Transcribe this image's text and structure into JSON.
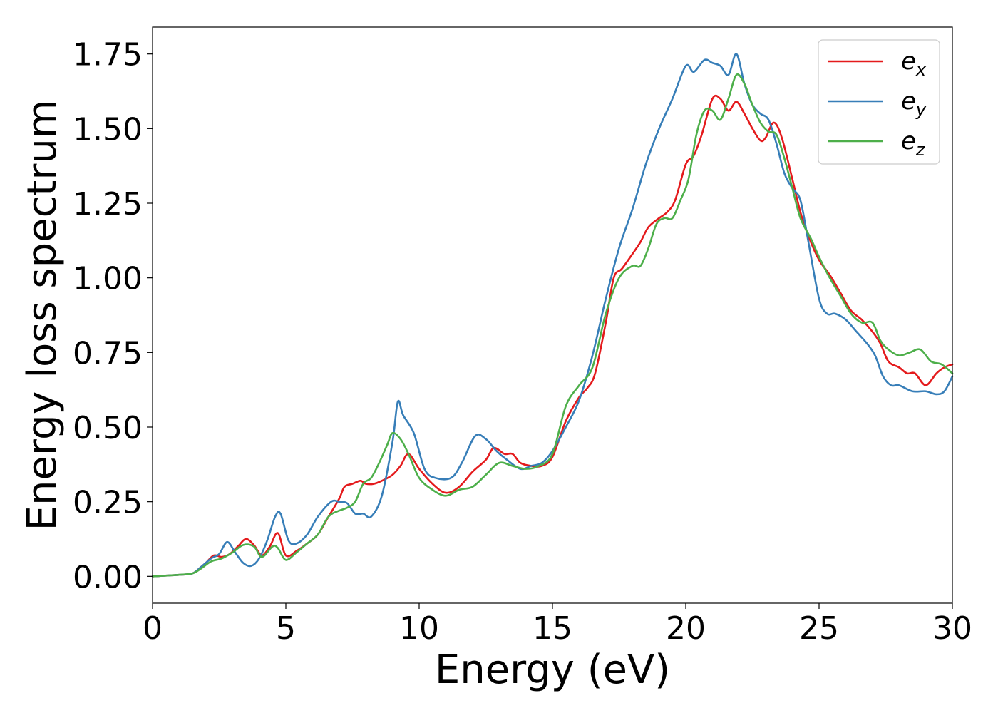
{
  "chart_data": {
    "type": "line",
    "title": "",
    "xlabel": "Energy (eV)",
    "ylabel": "Energy loss spectrum",
    "xlim": [
      0,
      30
    ],
    "ylim": [
      -0.09,
      1.84
    ],
    "xticks": [
      0,
      5,
      10,
      15,
      20,
      25,
      30
    ],
    "yticks": [
      0.0,
      0.25,
      0.5,
      0.75,
      1.0,
      1.25,
      1.5,
      1.75
    ],
    "xtick_labels": [
      "0",
      "5",
      "10",
      "15",
      "20",
      "25",
      "30"
    ],
    "ytick_labels": [
      "0.00",
      "0.25",
      "0.50",
      "0.75",
      "1.00",
      "1.25",
      "1.50",
      "1.75"
    ],
    "grid": false,
    "legend": "top-right",
    "series": [
      {
        "name": "e_x",
        "legend_base": "e",
        "legend_sub": "x",
        "color": "#e41a1c",
        "x": [
          0,
          1,
          1.5,
          1.8,
          2,
          2.3,
          2.6,
          2.9,
          3.2,
          3.5,
          3.8,
          4.1,
          4.4,
          4.7,
          5,
          5.4,
          5.8,
          6.2,
          6.6,
          7,
          7.2,
          7.5,
          7.8,
          8,
          8.3,
          8.6,
          9,
          9.3,
          9.6,
          10,
          10.5,
          11,
          11.5,
          12,
          12.5,
          12.8,
          13.2,
          13.5,
          13.8,
          14.2,
          14.6,
          15,
          15.5,
          16,
          16.3,
          16.6,
          17,
          17.3,
          17.6,
          18,
          18.3,
          18.6,
          19,
          19.3,
          19.6,
          20,
          20.3,
          20.6,
          21,
          21.3,
          21.6,
          21.9,
          22.2,
          22.5,
          22.8,
          23,
          23.3,
          23.6,
          24,
          24.3,
          24.6,
          25,
          25.4,
          25.8,
          26.2,
          26.6,
          27,
          27.3,
          27.6,
          28,
          28.3,
          28.6,
          29,
          29.4,
          29.7,
          30
        ],
        "y": [
          0,
          0.005,
          0.01,
          0.03,
          0.045,
          0.07,
          0.065,
          0.075,
          0.1,
          0.125,
          0.105,
          0.07,
          0.1,
          0.145,
          0.07,
          0.085,
          0.11,
          0.14,
          0.2,
          0.26,
          0.3,
          0.31,
          0.32,
          0.31,
          0.31,
          0.32,
          0.34,
          0.37,
          0.41,
          0.36,
          0.31,
          0.28,
          0.3,
          0.35,
          0.39,
          0.43,
          0.41,
          0.41,
          0.38,
          0.37,
          0.37,
          0.4,
          0.52,
          0.6,
          0.63,
          0.68,
          0.85,
          1.0,
          1.03,
          1.08,
          1.12,
          1.17,
          1.2,
          1.22,
          1.26,
          1.38,
          1.41,
          1.48,
          1.6,
          1.6,
          1.56,
          1.59,
          1.55,
          1.5,
          1.46,
          1.47,
          1.52,
          1.47,
          1.33,
          1.22,
          1.14,
          1.06,
          1.01,
          0.95,
          0.89,
          0.86,
          0.82,
          0.78,
          0.72,
          0.7,
          0.68,
          0.68,
          0.64,
          0.68,
          0.7,
          0.71
        ]
      },
      {
        "name": "e_y",
        "legend_base": "e",
        "legend_sub": "y",
        "color": "#377eb8",
        "x": [
          0,
          1,
          1.5,
          1.8,
          2.2,
          2.5,
          2.8,
          3.1,
          3.4,
          3.7,
          4,
          4.3,
          4.6,
          4.8,
          5.1,
          5.4,
          5.8,
          6.2,
          6.7,
          7,
          7.3,
          7.6,
          7.9,
          8.2,
          8.6,
          9,
          9.2,
          9.4,
          9.8,
          10.2,
          10.6,
          11.2,
          11.6,
          12.1,
          12.5,
          12.9,
          13.3,
          13.8,
          14.2,
          14.6,
          15,
          15.5,
          16,
          16.5,
          17,
          17.5,
          18,
          18.5,
          19,
          19.5,
          20,
          20.3,
          20.7,
          21,
          21.3,
          21.6,
          21.9,
          22.2,
          22.5,
          22.8,
          23.1,
          23.4,
          23.7,
          24,
          24.3,
          24.6,
          25,
          25.3,
          25.6,
          26,
          26.4,
          26.8,
          27.1,
          27.4,
          27.7,
          28,
          28.5,
          29,
          29.4,
          29.7,
          30
        ],
        "y": [
          0,
          0.005,
          0.01,
          0.03,
          0.06,
          0.075,
          0.115,
          0.08,
          0.045,
          0.035,
          0.06,
          0.12,
          0.2,
          0.21,
          0.12,
          0.11,
          0.14,
          0.2,
          0.25,
          0.25,
          0.245,
          0.21,
          0.21,
          0.2,
          0.27,
          0.45,
          0.585,
          0.54,
          0.48,
          0.36,
          0.33,
          0.33,
          0.38,
          0.47,
          0.46,
          0.42,
          0.39,
          0.36,
          0.37,
          0.38,
          0.42,
          0.5,
          0.59,
          0.74,
          0.93,
          1.1,
          1.23,
          1.38,
          1.5,
          1.6,
          1.71,
          1.69,
          1.73,
          1.72,
          1.71,
          1.68,
          1.75,
          1.65,
          1.58,
          1.55,
          1.53,
          1.45,
          1.35,
          1.3,
          1.26,
          1.12,
          0.93,
          0.88,
          0.88,
          0.86,
          0.82,
          0.78,
          0.74,
          0.67,
          0.64,
          0.64,
          0.62,
          0.62,
          0.61,
          0.62,
          0.67
        ]
      },
      {
        "name": "e_z",
        "legend_base": "e",
        "legend_sub": "z",
        "color": "#4daf4a",
        "x": [
          0,
          1,
          1.5,
          1.8,
          2.2,
          2.6,
          3,
          3.4,
          3.8,
          4.1,
          4.5,
          4.7,
          5,
          5.4,
          5.8,
          6.2,
          6.6,
          7,
          7.3,
          7.6,
          7.9,
          8.2,
          8.5,
          8.8,
          9,
          9.3,
          9.6,
          10,
          10.5,
          11,
          11.5,
          12,
          12.5,
          13,
          13.5,
          14,
          14.5,
          15,
          15.5,
          16,
          16.5,
          17,
          17.5,
          18,
          18.3,
          18.6,
          18.9,
          19.2,
          19.5,
          19.8,
          20.1,
          20.4,
          20.7,
          21,
          21.3,
          21.6,
          21.9,
          22.2,
          22.5,
          22.8,
          23.1,
          23.4,
          23.7,
          24,
          24.3,
          24.7,
          25,
          25.4,
          25.8,
          26.2,
          26.6,
          27,
          27.3,
          27.6,
          28,
          28.4,
          28.8,
          29.2,
          29.6,
          30
        ],
        "y": [
          0,
          0.005,
          0.01,
          0.025,
          0.05,
          0.06,
          0.08,
          0.105,
          0.1,
          0.065,
          0.1,
          0.095,
          0.055,
          0.08,
          0.11,
          0.14,
          0.2,
          0.22,
          0.23,
          0.25,
          0.31,
          0.33,
          0.38,
          0.44,
          0.48,
          0.46,
          0.41,
          0.33,
          0.29,
          0.27,
          0.29,
          0.3,
          0.34,
          0.38,
          0.37,
          0.36,
          0.37,
          0.41,
          0.57,
          0.64,
          0.7,
          0.88,
          1.0,
          1.04,
          1.04,
          1.1,
          1.18,
          1.2,
          1.2,
          1.26,
          1.33,
          1.48,
          1.56,
          1.56,
          1.53,
          1.6,
          1.68,
          1.65,
          1.58,
          1.52,
          1.49,
          1.48,
          1.4,
          1.3,
          1.2,
          1.13,
          1.07,
          1.0,
          0.94,
          0.88,
          0.85,
          0.85,
          0.79,
          0.76,
          0.74,
          0.75,
          0.76,
          0.72,
          0.71,
          0.68
        ]
      }
    ]
  }
}
